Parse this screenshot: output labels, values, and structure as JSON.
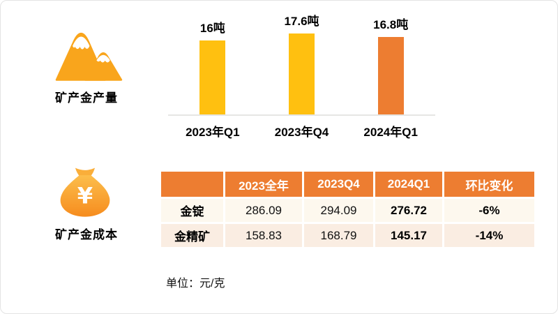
{
  "production_section": {
    "icon": "mountains-icon",
    "title": "矿产金产量"
  },
  "cost_section": {
    "icon": "money-bag-icon",
    "title": "矿产金成本",
    "unit_note": "单位：元/克"
  },
  "colors": {
    "gold_bar": "#FFC010",
    "orange_bar": "#ED7D31",
    "table_header_bg": "#ED7D31",
    "table_row_odd_bg": "#FDF8EE",
    "table_row_even_bg": "#FAEDE2",
    "axis_line": "#E6E6E4",
    "icon_orange": "#F9A51C",
    "header_text": "#FFFFFF",
    "body_text": "#000000"
  },
  "chart_data": [
    {
      "type": "bar",
      "title": "矿产金产量",
      "categories": [
        "2023年Q1",
        "2023年Q4",
        "2024年Q1"
      ],
      "values": [
        16,
        17.6,
        16.8
      ],
      "data_labels": [
        "16吨",
        "17.6吨",
        "16.8吨"
      ],
      "unit": "吨",
      "bar_colors": [
        "#FFC010",
        "#FFC010",
        "#ED7D31"
      ],
      "xlabel": "",
      "ylabel": "",
      "ylim": [
        0,
        18
      ],
      "grid": false,
      "legend": false,
      "baseline_axis": true
    },
    {
      "type": "table",
      "title": "矿产金成本",
      "columns": [
        "",
        "2023全年",
        "2023Q4",
        "2024Q1",
        "环比变化"
      ],
      "rows": [
        [
          "金锭",
          "286.09",
          "294.09",
          "276.72",
          "-6%"
        ],
        [
          "金精矿",
          "158.83",
          "168.79",
          "145.17",
          "-14%"
        ]
      ],
      "unit": "元/克"
    }
  ]
}
